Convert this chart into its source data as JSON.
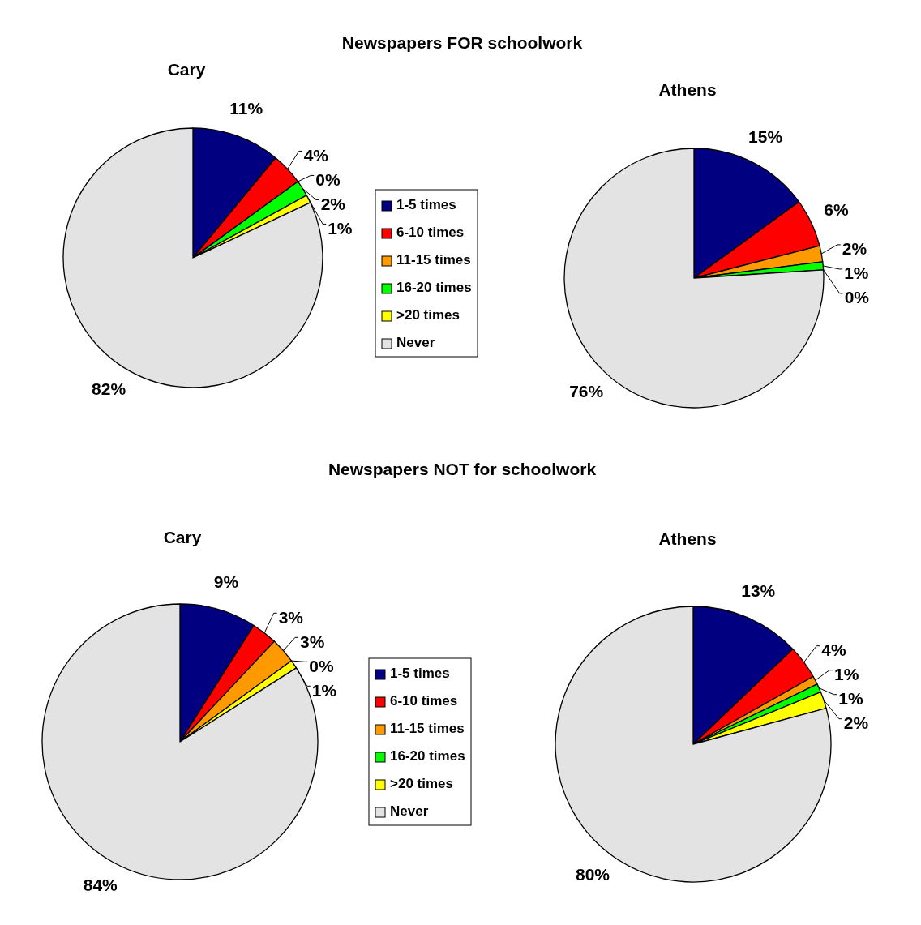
{
  "chart_data": [
    {
      "type": "pie",
      "annotations": [
        "Newspapers FOR schoolwork"
      ],
      "title": "Cary",
      "categories": [
        "1-5 times",
        "6-10 times",
        "11-15 times",
        "16-20 times",
        ">20 times",
        "Never"
      ],
      "values": [
        11,
        4,
        0,
        2,
        1,
        82
      ],
      "value_labels": [
        "11%",
        "4%",
        "0%",
        "2%",
        "1%",
        "82%"
      ],
      "colors": [
        "#000080",
        "#ff0000",
        "#ff9900",
        "#00ff00",
        "#ffff00",
        "#e3e3e3"
      ],
      "legend": "right"
    },
    {
      "type": "pie",
      "title": "Athens",
      "categories": [
        null,
        null,
        null,
        null,
        null,
        null
      ],
      "values": [
        15,
        6,
        2,
        1,
        0,
        76
      ],
      "value_labels": [
        "15%",
        "6%",
        "2%",
        "1%",
        "0%",
        "76%"
      ],
      "colors": [
        "#000080",
        "#ff0000",
        "#ff9900",
        "#00ff00",
        "#ffff00",
        "#e3e3e3"
      ]
    },
    {
      "type": "pie",
      "annotations": [
        "Newspapers NOT for schoolwork"
      ],
      "title": "Cary",
      "categories": [
        "1-5 times",
        "6-10 times",
        "11-15 times",
        "16-20 times",
        ">20 times",
        "Never"
      ],
      "values": [
        9,
        3,
        3,
        0,
        1,
        84
      ],
      "value_labels": [
        "9%",
        "3%",
        "3%",
        "0%",
        "1%",
        "84%"
      ],
      "colors": [
        "#000080",
        "#ff0000",
        "#ff9900",
        "#00ff00",
        "#ffff00",
        "#e3e3e3"
      ],
      "legend": "right"
    },
    {
      "type": "pie",
      "title": "Athens",
      "categories": [
        null,
        null,
        null,
        null,
        null,
        null
      ],
      "values": [
        13,
        4,
        1,
        1,
        2,
        80
      ],
      "value_labels": [
        "13%",
        "4%",
        "1%",
        "1%",
        "2%",
        "80%"
      ],
      "colors": [
        "#000080",
        "#ff0000",
        "#ff9900",
        "#00ff00",
        "#ffff00",
        "#e3e3e3"
      ]
    }
  ]
}
